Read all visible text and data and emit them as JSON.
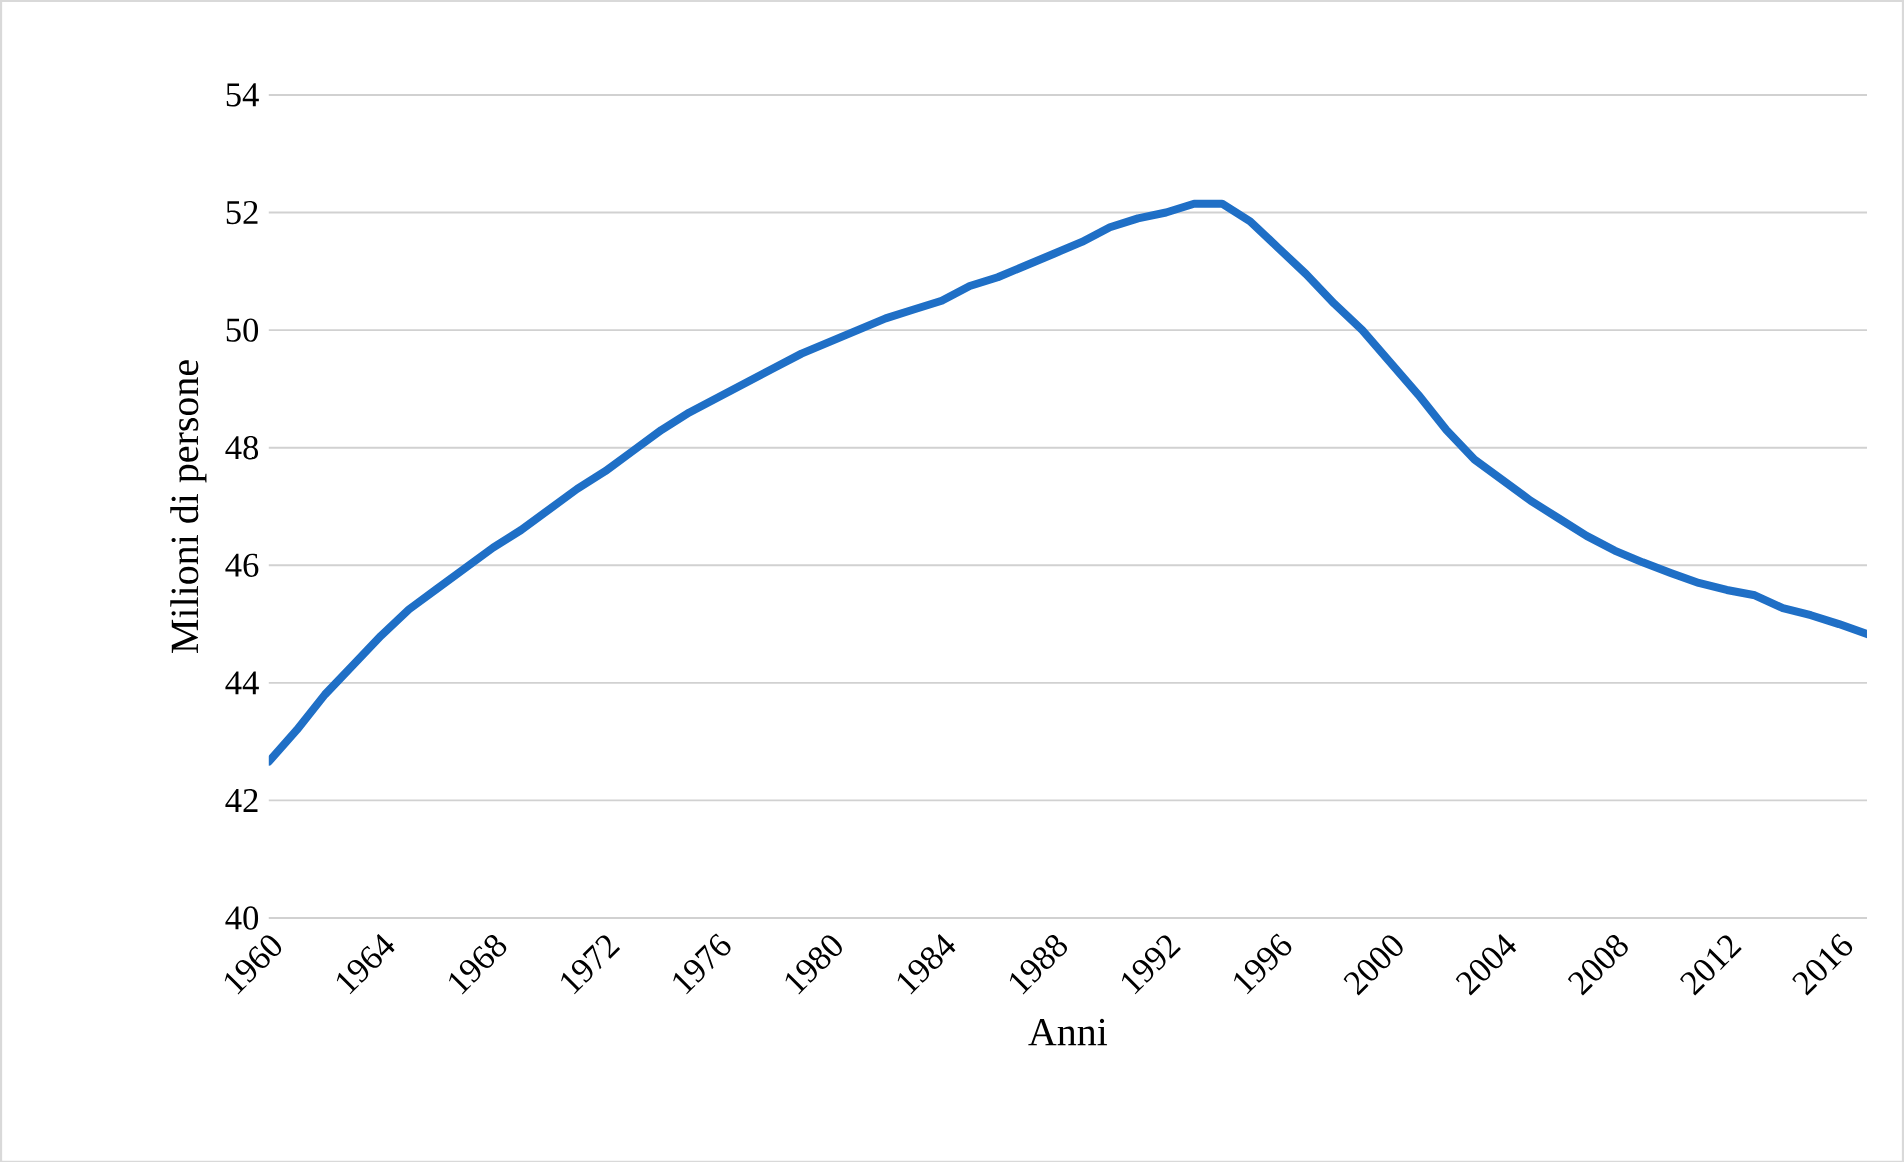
{
  "chart_data": {
    "type": "line",
    "xlabel": "Anni",
    "ylabel": "Milioni di persone",
    "x": [
      1960,
      1961,
      1962,
      1963,
      1964,
      1965,
      1966,
      1967,
      1968,
      1969,
      1970,
      1971,
      1972,
      1973,
      1974,
      1975,
      1976,
      1977,
      1978,
      1979,
      1980,
      1981,
      1982,
      1983,
      1984,
      1985,
      1986,
      1987,
      1988,
      1989,
      1990,
      1991,
      1992,
      1993,
      1994,
      1995,
      1996,
      1997,
      1998,
      1999,
      2000,
      2001,
      2002,
      2003,
      2004,
      2005,
      2006,
      2007,
      2008,
      2009,
      2010,
      2011,
      2012,
      2013,
      2014,
      2015,
      2016,
      2017
    ],
    "series": [
      {
        "color": "#1f6fc6",
        "values": [
          42.66,
          43.2,
          43.8,
          44.3,
          44.8,
          45.25,
          45.6,
          45.95,
          46.3,
          46.6,
          46.95,
          47.3,
          47.6,
          47.95,
          48.3,
          48.6,
          48.85,
          49.1,
          49.35,
          49.6,
          49.8,
          50.0,
          50.2,
          50.35,
          50.5,
          50.75,
          50.9,
          51.1,
          51.3,
          51.5,
          51.75,
          51.9,
          52.0,
          52.15,
          52.15,
          51.85,
          51.4,
          50.95,
          50.45,
          50.0,
          49.45,
          48.9,
          48.3,
          47.8,
          47.45,
          47.1,
          46.8,
          46.5,
          46.25,
          46.05,
          45.87,
          45.7,
          45.58,
          45.49,
          45.27,
          45.15,
          45.0,
          44.83
        ]
      }
    ],
    "xlim": [
      1960,
      2017
    ],
    "xticks": [
      1960,
      1964,
      1968,
      1972,
      1976,
      1980,
      1984,
      1988,
      1992,
      1996,
      2000,
      2004,
      2008,
      2012,
      2016
    ],
    "ylim": [
      40,
      54
    ],
    "yticks": [
      40,
      42,
      44,
      46,
      48,
      50,
      52,
      54
    ],
    "grid": "y",
    "legend": false,
    "marker": "none",
    "line_style": "solid"
  }
}
